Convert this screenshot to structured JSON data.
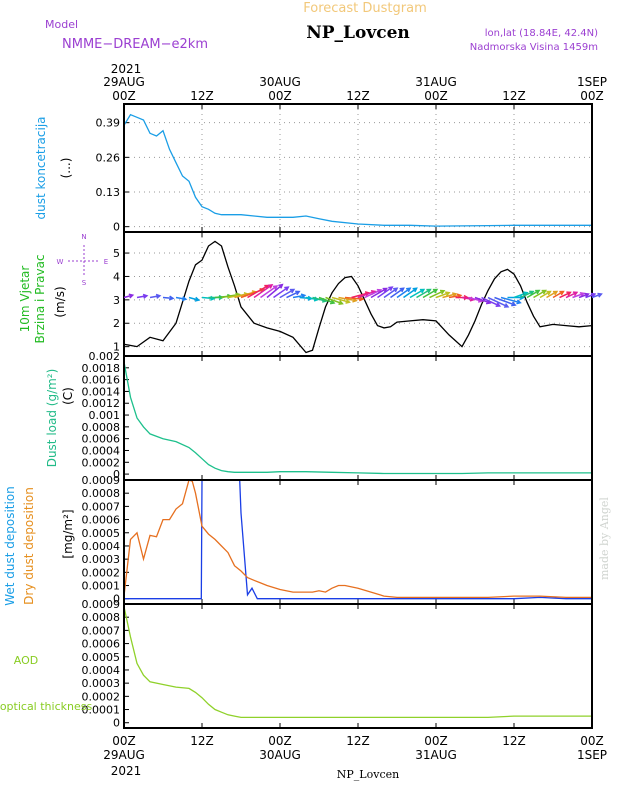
{
  "header": {
    "top_title": "Forecast Dustgram",
    "model_label": "Model",
    "model_name": "NMME−DREAM−e2km",
    "station": "NP_Lovcen",
    "lonlat": "lon,lat (18.84E, 42.4N)",
    "altitude": "Nadmorska Visina 1459m",
    "watermark": "made by Angel"
  },
  "time_axis": {
    "top_year": "2021",
    "bottom_year": "2021",
    "bottom_title": "NP_Lovcen",
    "ticks": [
      {
        "t": 0,
        "line1": "29AUG",
        "line2": "00Z",
        "bottom1": "00Z",
        "bottom2": "29AUG"
      },
      {
        "t": 12,
        "line1": "",
        "line2": "12Z",
        "bottom1": "12Z",
        "bottom2": ""
      },
      {
        "t": 24,
        "line1": "30AUG",
        "line2": "00Z",
        "bottom1": "00Z",
        "bottom2": "30AUG"
      },
      {
        "t": 36,
        "line1": "",
        "line2": "12Z",
        "bottom1": "12Z",
        "bottom2": ""
      },
      {
        "t": 48,
        "line1": "31AUG",
        "line2": "00Z",
        "bottom1": "00Z",
        "bottom2": "31AUG"
      },
      {
        "t": 60,
        "line1": "",
        "line2": "12Z",
        "bottom1": "12Z",
        "bottom2": ""
      },
      {
        "t": 72,
        "line1": "1SEP",
        "line2": "00Z",
        "bottom1": "00Z",
        "bottom2": "1SEP"
      }
    ]
  },
  "chart_data": [
    {
      "type": "line",
      "id": "concentration",
      "ylabel": "dust koncetracija",
      "unit": "(...)",
      "ylabel_color": "#1a9ee6",
      "ylim": [
        -0.02,
        0.46
      ],
      "yticks": [
        0,
        0.13,
        0.26,
        0.39
      ],
      "ytick_labels": [
        "0",
        "0.13",
        "0.26",
        "0.39"
      ],
      "grid": true,
      "series": [
        {
          "color": "#1a9ee6",
          "x": [
            0,
            1,
            2,
            3,
            4,
            5,
            6,
            7,
            8,
            9,
            10,
            11,
            12,
            13,
            14,
            15,
            16,
            18,
            20,
            22,
            24,
            26,
            28,
            30,
            32,
            36,
            40,
            44,
            48,
            52,
            56,
            60,
            64,
            68,
            72
          ],
          "y": [
            0.38,
            0.42,
            0.41,
            0.4,
            0.35,
            0.34,
            0.36,
            0.29,
            0.24,
            0.19,
            0.17,
            0.11,
            0.075,
            0.065,
            0.05,
            0.045,
            0.045,
            0.045,
            0.04,
            0.035,
            0.035,
            0.035,
            0.04,
            0.03,
            0.02,
            0.01,
            0.005,
            0.005,
            0.002,
            0.003,
            0.004,
            0.005,
            0.005,
            0.005,
            0.005
          ]
        }
      ]
    },
    {
      "type": "line",
      "id": "wind",
      "ylabel": "10m Vjetar",
      "ylabel2": "Brzina i Pravac",
      "unit": "(m/s)",
      "ylabel_color": "#22bb22",
      "ylim": [
        0.6,
        5.9
      ],
      "yticks": [
        1,
        2,
        3,
        4,
        5
      ],
      "ytick_labels": [
        "1",
        "2",
        "3",
        "4",
        "5"
      ],
      "grid": true,
      "compass": {
        "n": "N",
        "s": "S",
        "w": "W",
        "e": "E"
      },
      "series": [
        {
          "color": "#000000",
          "x": [
            0,
            2,
            4,
            6,
            8,
            9,
            10,
            11,
            12,
            13,
            14,
            15,
            16,
            17,
            18,
            20,
            22,
            24,
            26,
            28,
            29,
            30,
            31,
            32,
            33,
            34,
            35,
            36,
            37,
            38,
            39,
            40,
            41,
            42,
            44,
            46,
            48,
            50,
            52,
            53,
            54,
            55,
            56,
            57,
            58,
            59,
            60,
            61,
            62,
            63,
            64,
            66,
            68,
            70,
            72
          ],
          "y": [
            1.1,
            1.0,
            1.4,
            1.25,
            2.0,
            2.9,
            3.8,
            4.5,
            4.7,
            5.3,
            5.5,
            5.3,
            4.4,
            3.6,
            2.7,
            2.0,
            1.8,
            1.65,
            1.4,
            0.75,
            0.85,
            1.8,
            2.7,
            3.3,
            3.7,
            3.95,
            4.0,
            3.6,
            3.0,
            2.4,
            1.9,
            1.8,
            1.85,
            2.05,
            2.1,
            2.15,
            2.1,
            1.5,
            1.0,
            1.5,
            2.1,
            2.8,
            3.4,
            3.9,
            4.2,
            4.3,
            4.1,
            3.6,
            2.9,
            2.3,
            1.85,
            1.95,
            1.9,
            1.85,
            1.9
          ]
        }
      ]
    },
    {
      "type": "line",
      "id": "dustload",
      "ylabel": "Dust load (g/m²)",
      "unit": "(C)",
      "ylabel_color": "#22bb88",
      "ylim": [
        -0.0001,
        0.002
      ],
      "yticks": [
        0,
        0.0002,
        0.0004,
        0.0006,
        0.0008,
        0.001,
        0.0012,
        0.0014,
        0.0016,
        0.0018,
        0.002
      ],
      "ytick_labels": [
        "0",
        "0.0002",
        "0.0004",
        "0.0006",
        "0.0008",
        "0.001",
        "0.0012",
        "0.0014",
        "0.0016",
        "0.0018",
        "0.002"
      ],
      "grid": false,
      "series": [
        {
          "color": "#1ec08c",
          "x": [
            0,
            1,
            2,
            3,
            4,
            6,
            8,
            10,
            11,
            12,
            13,
            14,
            15,
            16,
            17,
            18,
            20,
            22,
            24,
            28,
            32,
            36,
            40,
            44,
            48,
            52,
            56,
            60,
            64,
            68,
            72
          ],
          "y": [
            0.0019,
            0.0013,
            0.00095,
            0.0008,
            0.00068,
            0.0006,
            0.00055,
            0.00045,
            0.00036,
            0.00026,
            0.00016,
            0.0001,
            6e-05,
            4e-05,
            3e-05,
            3e-05,
            3e-05,
            3e-05,
            4e-05,
            4e-05,
            3e-05,
            2e-05,
            1e-05,
            1e-05,
            1e-05,
            1e-05,
            2e-05,
            2e-05,
            2e-05,
            2e-05,
            2e-05
          ]
        }
      ]
    },
    {
      "type": "line",
      "id": "deposition",
      "ylabel_wet": "Wet dust deposition",
      "ylabel_dry": "Dry dust deposition",
      "unit": "[mg/m²]",
      "wet_color": "#1a9ee6",
      "dry_color": "#e69020",
      "ylim": [
        -4e-05,
        0.0009
      ],
      "yticks": [
        0,
        0.0001,
        0.0002,
        0.0003,
        0.0004,
        0.0005,
        0.0006,
        0.0007,
        0.0008,
        0.0009
      ],
      "ytick_labels": [
        "0",
        "0.0001",
        "0.0002",
        "0.0003",
        "0.0004",
        "0.0005",
        "0.0006",
        "0.0007",
        "0.0008",
        "0.0009"
      ],
      "grid": false,
      "series": [
        {
          "name": "Wet",
          "color": "#1a3ee6",
          "x": [
            0,
            11.9,
            12,
            17.8,
            18,
            19,
            19.7,
            20.5,
            24,
            48,
            60,
            64,
            68,
            72
          ],
          "y": [
            0,
            0,
            0.0009,
            0.0009,
            0.00065,
            3e-05,
            8e-05,
            0,
            0,
            0,
            0,
            1e-05,
            0,
            0
          ]
        },
        {
          "name": "Dry",
          "color": "#e67020",
          "x": [
            0,
            1,
            2,
            3,
            4,
            5,
            6,
            7,
            8,
            9,
            10,
            10.5,
            11,
            12,
            13,
            14,
            15,
            16,
            17,
            18,
            19,
            20,
            21,
            22,
            24,
            26,
            28,
            29,
            30,
            31,
            32,
            33,
            34,
            35,
            36,
            38,
            40,
            42,
            44,
            48,
            52,
            56,
            60,
            64,
            68,
            72
          ],
          "y": [
            2e-05,
            0.00045,
            0.0005,
            0.0003,
            0.00048,
            0.00047,
            0.0006,
            0.0006,
            0.00068,
            0.00072,
            0.0009,
            0.00089,
            0.0008,
            0.00055,
            0.00049,
            0.00045,
            0.0004,
            0.00035,
            0.00025,
            0.00021,
            0.00016,
            0.00014,
            0.00012,
            0.0001,
            7e-05,
            5e-05,
            5e-05,
            5e-05,
            6e-05,
            5e-05,
            8e-05,
            0.0001,
            0.0001,
            9e-05,
            8e-05,
            5e-05,
            2e-05,
            1e-05,
            1e-05,
            1e-05,
            1e-05,
            1e-05,
            2e-05,
            2e-05,
            1e-05,
            1e-05
          ]
        }
      ]
    },
    {
      "type": "line",
      "id": "aod",
      "ylabel": "AOD",
      "ylabel2": "optical thickness",
      "ylabel_color": "#88cc22",
      "ylim": [
        -4e-05,
        0.0009
      ],
      "yticks": [
        0,
        0.0001,
        0.0002,
        0.0003,
        0.0004,
        0.0005,
        0.0006,
        0.0007,
        0.0008,
        0.0009
      ],
      "ytick_labels": [
        "0",
        "0.0001",
        "0.0002",
        "0.0003",
        "0.0004",
        "0.0005",
        "0.0006",
        "0.0007",
        "0.0008",
        "0.0009"
      ],
      "grid": false,
      "series": [
        {
          "color": "#8fd12a",
          "x": [
            0,
            1,
            2,
            3,
            4,
            6,
            8,
            10,
            11,
            12,
            13,
            14,
            15,
            16,
            17,
            18,
            20,
            24,
            28,
            32,
            36,
            40,
            44,
            48,
            52,
            56,
            60,
            64,
            68,
            72
          ],
          "y": [
            0.00088,
            0.00065,
            0.00045,
            0.00036,
            0.00031,
            0.00029,
            0.00027,
            0.00026,
            0.00023,
            0.00019,
            0.00014,
            0.0001,
            8e-05,
            6e-05,
            5e-05,
            4e-05,
            4e-05,
            4e-05,
            4e-05,
            4e-05,
            4e-05,
            4e-05,
            4e-05,
            4e-05,
            4e-05,
            4e-05,
            5e-05,
            5e-05,
            5e-05,
            5e-05
          ]
        }
      ]
    }
  ],
  "wind_arrows": {
    "level": 3.1,
    "x": [
      0,
      2,
      4,
      6,
      8,
      10,
      12,
      13,
      14,
      15,
      16,
      17,
      18,
      19,
      20,
      21,
      22,
      23,
      24,
      25,
      26,
      27,
      28,
      29,
      30,
      31,
      32,
      33,
      34,
      35,
      36,
      37,
      38,
      39,
      40,
      41,
      42,
      43,
      44,
      45,
      46,
      47,
      48,
      49,
      50,
      51,
      52,
      53,
      54,
      55,
      56,
      57,
      58,
      59,
      60,
      61,
      62,
      63,
      64,
      65,
      66,
      67,
      68,
      69,
      70,
      71,
      72
    ],
    "dir": [
      -15,
      -10,
      -10,
      5,
      10,
      15,
      5,
      0,
      -5,
      -10,
      -10,
      -15,
      -20,
      -30,
      -35,
      -35,
      -40,
      -35,
      -30,
      -25,
      -10,
      5,
      10,
      15,
      20,
      20,
      15,
      10,
      5,
      -15,
      -20,
      -25,
      -30,
      -35,
      -35,
      -35,
      -35,
      -35,
      -30,
      -30,
      -30,
      -25,
      -20,
      -15,
      -10,
      0,
      10,
      15,
      20,
      25,
      25,
      20,
      15,
      0,
      -20,
      -25,
      -30,
      -30,
      -30,
      -30,
      -30,
      -25,
      -25,
      -20,
      -20,
      -20,
      -20
    ],
    "len": [
      9,
      10,
      10,
      10,
      10,
      10,
      12,
      14,
      16,
      18,
      20,
      22,
      24,
      24,
      22,
      20,
      20,
      18,
      16,
      14,
      12,
      12,
      12,
      14,
      16,
      18,
      18,
      18,
      18,
      18,
      18,
      18,
      18,
      18,
      16,
      16,
      16,
      16,
      16,
      16,
      16,
      16,
      14,
      14,
      12,
      12,
      12,
      14,
      16,
      20,
      22,
      22,
      20,
      16,
      14,
      14,
      14,
      14,
      12,
      12,
      12,
      12,
      12,
      12,
      10,
      10,
      10
    ],
    "colors": [
      "#8a2be2",
      "#7a3cf0",
      "#5a5af0",
      "#4060f0",
      "#2080f0",
      "#00a0e0",
      "#00c0c0",
      "#20c080",
      "#40c040",
      "#80c020",
      "#c0c020",
      "#e0a020",
      "#f06020",
      "#f02060",
      "#e020a0",
      "#c040e0"
    ]
  }
}
